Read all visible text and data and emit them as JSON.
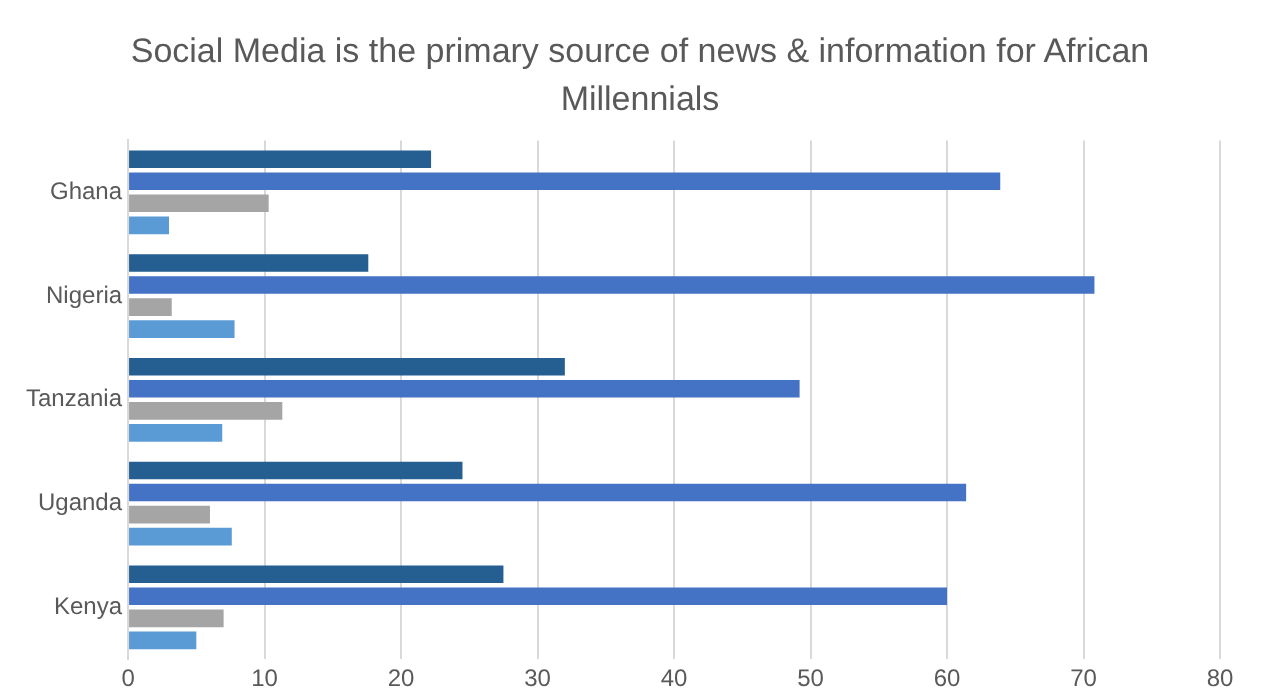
{
  "chart_data": {
    "type": "bar",
    "orientation": "horizontal",
    "title": "Social Media is the primary source of news & information for African Millennials",
    "categories": [
      "Ghana",
      "Nigeria",
      "Tanzania",
      "Uganda",
      "Kenya"
    ],
    "series": [
      {
        "color": "#255e91",
        "values": [
          22.2,
          17.6,
          32,
          24.5,
          27.5
        ]
      },
      {
        "color": "#4472c4",
        "values": [
          63.9,
          70.8,
          49.2,
          61.4,
          60
        ]
      },
      {
        "color": "#a5a5a5",
        "values": [
          10.3,
          3.2,
          11.3,
          6,
          7
        ]
      },
      {
        "color": "#5b9bd5",
        "values": [
          3,
          7.8,
          6.9,
          7.6,
          5
        ]
      }
    ],
    "xlim": [
      0,
      80
    ],
    "xticks": [
      0,
      10,
      20,
      30,
      40,
      50,
      60,
      70,
      80
    ],
    "grid": "x",
    "legend": false
  }
}
